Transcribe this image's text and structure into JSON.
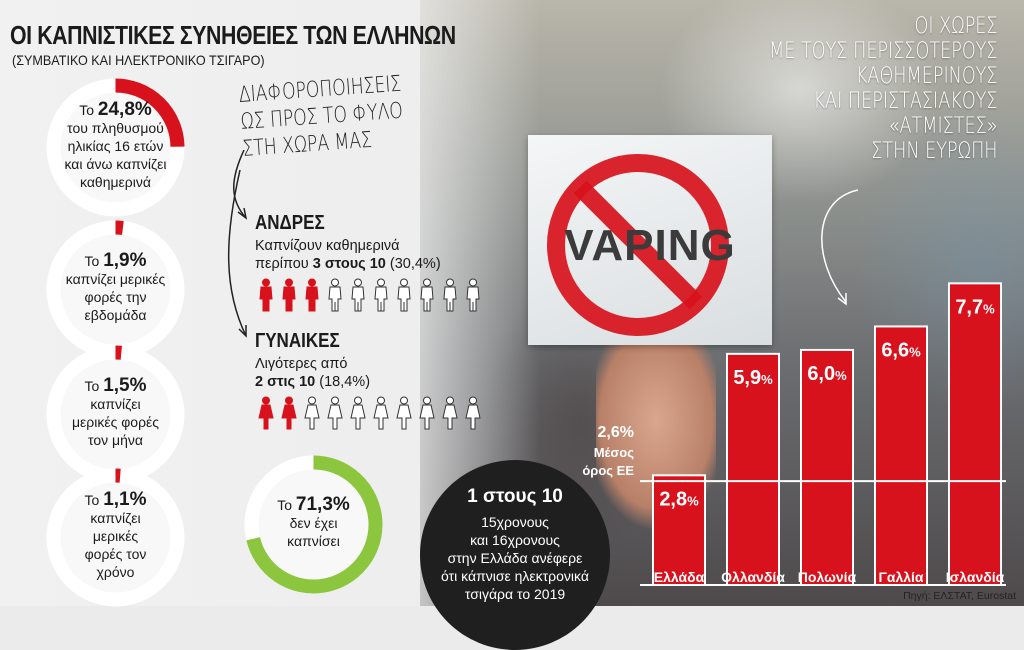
{
  "title": "ΟΙ ΚΑΠΝΙΣΤΙΚΕΣ ΣΥΝΗΘΕΙΕΣ ΤΩΝ ΕΛΛΗΝΩΝ",
  "subtitle": "(ΣΥΜΒΑΤΙΚΟ ΚΑΙ ΗΛΕΚΤΡΟΝΙΚΟ ΤΣΙΓΑΡΟ)",
  "colors": {
    "red": "#d8121c",
    "green": "#8cc63f",
    "dark": "#1f1f1f",
    "ring": "#ffffff"
  },
  "stats": [
    {
      "value": "24,8%",
      "fraction": 0.248,
      "color": "#d8121c",
      "prefix": "Το ",
      "lines": [
        "του πληθυσμού",
        "ηλικίας 16 ετών",
        "και άνω καπνίζει",
        "καθημερινά"
      ]
    },
    {
      "value": "1,9%",
      "fraction": 0.019,
      "color": "#d8121c",
      "prefix": "Το ",
      "lines": [
        "καπνίζει μερικές",
        "φορές την",
        "εβδομάδα"
      ]
    },
    {
      "value": "1,5%",
      "fraction": 0.015,
      "color": "#d8121c",
      "prefix": "Το ",
      "lines": [
        "καπνίζει",
        "μερικές φορές",
        "τον μήνα"
      ]
    },
    {
      "value": "1,1%",
      "fraction": 0.011,
      "color": "#d8121c",
      "prefix": "Το ",
      "lines": [
        "καπνίζει",
        "μερικές",
        "φορές τον",
        "χρόνο"
      ]
    },
    {
      "value": "71,3%",
      "fraction": 0.713,
      "color": "#8cc63f",
      "prefix": "Το ",
      "lines": [
        "δεν έχει",
        "καπνίσει"
      ]
    }
  ],
  "gender": {
    "note": [
      "ΔΙΑΦΟΡΟΠΟΙΗΣΕΙΣ",
      "ΩΣ ΠΡΟΣ ΤΟ ΦΥΛΟ",
      "ΣΤΗ ΧΩΡΑ ΜΑΣ"
    ],
    "men": {
      "title": "ΑΝΔΡΕΣ",
      "line1": "Καπνίζουν καθημερινά",
      "line2_pre": "περίπου ",
      "line2_bold": "3 στους 10",
      "line2_post": " (30,4%)",
      "filled": 3,
      "total": 10
    },
    "women": {
      "title": "ΓΥΝΑΙΚΕΣ",
      "line1": "Λιγότερες από",
      "line2_bold": "2 στις 10",
      "line2_post": " (18,4%)",
      "filled": 2,
      "total": 10
    }
  },
  "teen": {
    "head": "1 στους 10",
    "lines": [
      "15χρονους",
      "και 16χρονους",
      "στην Ελλάδα ανέφερε",
      "ότι κάπνισε ηλεκτρονικά",
      "τσιγάρα το 2019"
    ]
  },
  "sign_word": "VAPING",
  "right_title": [
    "ΟΙ ΧΩΡΕΣ",
    "ΜΕ ΤΟΥΣ ΠΕΡΙΣΣΟΤΕΡΟΥΣ",
    "ΚΑΘΗΜΕΡΙΝΟΥΣ",
    "ΚΑΙ ΠΕΡΙΣΤΑΣΙΑΚΟΥΣ",
    "«ΑΤΜΙΣΤΕΣ»",
    "ΣΤΗΝ ΕΥΡΩΠΗ"
  ],
  "chart_data": {
    "type": "bar",
    "categories": [
      "Ελλάδα",
      "Ολλανδία",
      "Πολωνία",
      "Γαλλία",
      "Ισλανδία"
    ],
    "values": [
      2.8,
      5.9,
      6.0,
      6.6,
      7.7
    ],
    "value_labels": [
      "2,8",
      "5,9",
      "6,0",
      "6,6",
      "7,7"
    ],
    "unit": "%",
    "ylim": [
      0,
      8.5
    ],
    "reference_line": {
      "value": 2.6,
      "label_value": "2,6%",
      "label_lines": [
        "Μέσος",
        "όρος ΕΕ"
      ]
    },
    "bar_color": "#d8121c"
  },
  "source": "Πηγή: ΕΛΣΤΑΤ, Eurostat"
}
